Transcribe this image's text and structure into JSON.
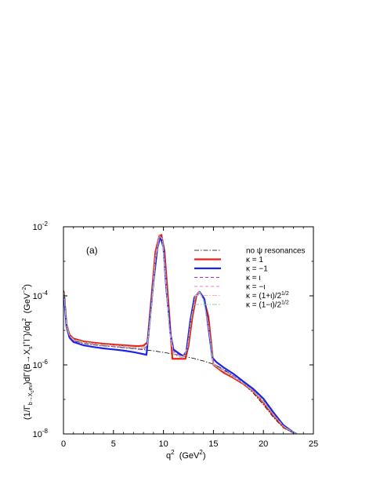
{
  "chart_data": {
    "type": "line",
    "panel_label": "(a)",
    "xlabel_parts": {
      "base": "q",
      "sup": "2",
      "unit_open": "  (GeV",
      "unit_sup": "2",
      "unit_close": ")"
    },
    "ylabel_parts": {
      "p1": "(1/Γ",
      "sub1": "b→X",
      "subsub1": "c",
      "sub1b": "eν",
      "p2": ")dΓ(B→X",
      "sub2": "s",
      "p3": "l",
      "sup3": "+",
      "p4": "l",
      "sup4": "−",
      "p5": ")/dq",
      "sup5": "2",
      "p6": "  (GeV",
      "sup6": "−2",
      "p7": ")"
    },
    "xlim": [
      0,
      25
    ],
    "ylim": [
      1e-08,
      0.01
    ],
    "yscale": "log",
    "x_ticks": [
      0,
      5,
      10,
      15,
      20,
      25
    ],
    "x_tick_labels": [
      "0",
      "5",
      "10",
      "15",
      "20",
      "25"
    ],
    "y_ticks": [
      1e-08,
      1e-06,
      0.0001,
      0.01
    ],
    "y_tick_labels": [
      {
        "base": "10",
        "exp": "-8"
      },
      {
        "base": "10",
        "exp": "-6"
      },
      {
        "base": "10",
        "exp": "-4"
      },
      {
        "base": "10",
        "exp": "-2"
      }
    ],
    "legend_position": "top-right",
    "series": [
      {
        "name": "no ψ resonances",
        "color": "#000000",
        "dash": "6,2,1.5,2",
        "width": 0.8,
        "x": [
          0.05,
          0.3,
          0.6,
          1,
          2,
          3,
          4,
          5,
          6,
          7,
          8,
          9,
          10,
          11,
          12,
          13,
          14,
          15,
          16,
          17,
          18,
          19,
          20,
          21,
          22,
          23,
          23.3
        ],
        "y": [
          0.00014,
          1.5e-05,
          6.5e-06,
          5e-06,
          4.2e-06,
          3.8e-06,
          3.55e-06,
          3.35e-06,
          3.15e-06,
          2.95e-06,
          2.75e-06,
          2.55e-06,
          2.3e-06,
          2.05e-06,
          1.8e-06,
          1.55e-06,
          1.3e-06,
          1.05e-06,
          7.5e-07,
          4.8e-07,
          2.8e-07,
          1.5e-07,
          7e-08,
          3e-08,
          1.5e-08,
          1.05e-08,
          1e-08
        ]
      },
      {
        "name": "κ = 1",
        "color": "#e8211b",
        "dash": "",
        "width": 2.2,
        "x": [
          0.05,
          0.3,
          0.6,
          1,
          2,
          3,
          4,
          5,
          6,
          7,
          7.5,
          8,
          8.4,
          8.8,
          9.2,
          9.6,
          9.8,
          10.1,
          10.5,
          10.9,
          11.2,
          12.2,
          12.5,
          12.9,
          13.3,
          13.6,
          14,
          14.5,
          15,
          16,
          17,
          18,
          19,
          20,
          21,
          22,
          23,
          23.3
        ],
        "y": [
          0.00013,
          1.5e-05,
          7.5e-06,
          5.8e-06,
          4.8e-06,
          4.4e-06,
          4.1e-06,
          3.9e-06,
          3.7e-06,
          3.55e-06,
          3.5e-06,
          3.6e-06,
          4.5e-06,
          9e-05,
          0.0019,
          0.0055,
          0.0058,
          0.002,
          6e-05,
          1.5e-06,
          1.5e-06,
          1.5e-06,
          3.5e-06,
          2.5e-05,
          0.0001,
          0.00013,
          9e-05,
          2.5e-05,
          1e-06,
          6e-07,
          4.2e-07,
          2.8e-07,
          1.7e-07,
          8e-08,
          3.4e-08,
          1.6e-08,
          1.1e-08,
          1e-08
        ]
      },
      {
        "name": "κ = −1",
        "color": "#1a24e6",
        "dash": "",
        "width": 2.2,
        "x": [
          0.05,
          0.3,
          0.6,
          1,
          2,
          3,
          4,
          5,
          6,
          7,
          8,
          8.3,
          8.6,
          9,
          9.4,
          9.7,
          10,
          10.3,
          10.7,
          11,
          11.5,
          12,
          12.3,
          12.7,
          13.1,
          13.6,
          14.1,
          14.5,
          14.9,
          15.3,
          16,
          17,
          18,
          19,
          20,
          21,
          22,
          23,
          23.3
        ],
        "y": [
          0.00011,
          1.3e-05,
          6.2e-06,
          4.6e-06,
          3.7e-06,
          3.3e-06,
          3e-06,
          2.8e-06,
          2.6e-06,
          2.35e-06,
          2.05e-06,
          1.95e-06,
          1.5e-05,
          0.00025,
          0.0025,
          0.0052,
          0.0025,
          0.00015,
          8e-06,
          2.8e-06,
          2.2e-06,
          1.8e-06,
          2.5e-06,
          2e-05,
          9e-05,
          0.00013,
          8e-05,
          1.2e-05,
          1.6e-06,
          1.2e-06,
          8.5e-07,
          5.5e-07,
          3.3e-07,
          2e-07,
          1.05e-07,
          4.2e-08,
          1.8e-08,
          1.1e-08,
          1e-08
        ]
      },
      {
        "name": "κ = ι",
        "color": "#a02ed6",
        "dash": "4,3",
        "width": 1,
        "x": [
          0.05,
          0.3,
          0.6,
          1,
          2,
          3,
          4,
          5,
          6,
          7,
          8,
          8.4,
          8.8,
          9.2,
          9.6,
          9.9,
          10.2,
          10.6,
          11,
          11.5,
          12,
          12.4,
          12.8,
          13.2,
          13.6,
          14,
          14.5,
          15,
          16,
          17,
          18,
          19,
          20,
          21,
          22,
          23,
          23.3
        ],
        "y": [
          0.00012,
          1.4e-05,
          6.8e-06,
          5.2e-06,
          4.3e-06,
          3.9e-06,
          3.6e-06,
          3.4e-06,
          3.2e-06,
          3e-06,
          2.8e-06,
          3.5e-06,
          4e-05,
          0.001,
          0.0052,
          0.0048,
          0.0006,
          1.5e-05,
          2.5e-06,
          2e-06,
          1.8e-06,
          2.8e-06,
          2.2e-05,
          9e-05,
          0.000125,
          8e-05,
          1.5e-05,
          1.1e-06,
          7e-07,
          4.8e-07,
          3e-07,
          1.8e-07,
          9e-08,
          3.8e-08,
          1.7e-08,
          1.1e-08,
          1e-08
        ]
      },
      {
        "name": "κ = −ι",
        "color": "#f07ac8",
        "dash": "4,3",
        "width": 1,
        "x": [
          0.05,
          0.3,
          0.6,
          1,
          2,
          3,
          4,
          5,
          6,
          7,
          8,
          8.4,
          8.8,
          9.2,
          9.6,
          9.9,
          10.2,
          10.6,
          11,
          11.5,
          12,
          12.4,
          12.8,
          13.2,
          13.6,
          14,
          14.5,
          15,
          16,
          17,
          18,
          19,
          20,
          21,
          22,
          23,
          23.3
        ],
        "y": [
          0.00012,
          1.4e-05,
          6.9e-06,
          5.3e-06,
          4.4e-06,
          4e-06,
          3.7e-06,
          3.5e-06,
          3.3e-06,
          3.1e-06,
          2.9e-06,
          3.7e-06,
          4.5e-05,
          0.0011,
          0.0053,
          0.0046,
          0.0005,
          1.2e-05,
          2.4e-06,
          1.9e-06,
          1.75e-06,
          3e-06,
          2.3e-05,
          9.5e-05,
          0.000128,
          7.5e-05,
          1.4e-05,
          1.05e-06,
          6.8e-07,
          4.6e-07,
          2.9e-07,
          1.75e-07,
          8.8e-08,
          3.7e-08,
          1.7e-08,
          1.1e-08,
          1e-08
        ]
      },
      {
        "name": "κ = (1+ι)/2",
        "name_sup": "1/2",
        "color": "#f4b2b2",
        "dash": "6,2,1.5,2",
        "width": 1,
        "x": [
          0.05,
          0.3,
          0.6,
          1,
          2,
          3,
          4,
          5,
          6,
          7,
          8,
          8.4,
          8.8,
          9.2,
          9.6,
          9.9,
          10.2,
          10.6,
          11,
          11.5,
          12,
          12.4,
          12.8,
          13.2,
          13.6,
          14,
          14.5,
          15,
          16,
          17,
          18,
          19,
          20,
          21,
          22,
          23,
          23.3
        ],
        "y": [
          0.000125,
          1.45e-05,
          7.1e-06,
          5.5e-06,
          4.6e-06,
          4.2e-06,
          3.9e-06,
          3.7e-06,
          3.5e-06,
          3.3e-06,
          3.15e-06,
          4e-06,
          5.5e-05,
          0.0014,
          0.0056,
          0.0042,
          0.00035,
          9e-06,
          2e-06,
          1.7e-06,
          1.6e-06,
          3.2e-06,
          2.4e-05,
          0.0001,
          0.00013,
          7.8e-05,
          1.3e-05,
          1e-06,
          6.5e-07,
          4.4e-07,
          2.9e-07,
          1.7e-07,
          8.5e-08,
          3.6e-08,
          1.65e-08,
          1.1e-08,
          1e-08
        ]
      },
      {
        "name": "κ = (1−ι)/2",
        "name_sup": "1/2",
        "color": "#8fd28f",
        "dash": "6,2,1.5,2",
        "width": 1,
        "x": [
          0.05,
          0.3,
          0.6,
          1,
          2,
          3,
          4,
          5,
          6,
          7,
          8,
          8.4,
          8.8,
          9.2,
          9.6,
          9.9,
          10.2,
          10.6,
          11,
          11.5,
          12,
          12.4,
          12.8,
          13.2,
          13.6,
          14,
          14.5,
          15,
          16,
          17,
          18,
          19,
          20,
          21,
          22,
          23,
          23.3
        ],
        "y": [
          0.000125,
          1.45e-05,
          7e-06,
          5.4e-06,
          4.5e-06,
          4.1e-06,
          3.8e-06,
          3.6e-06,
          3.4e-06,
          3.2e-06,
          3.05e-06,
          3.8e-06,
          5e-05,
          0.0013,
          0.0055,
          0.0043,
          0.0004,
          1e-05,
          2.1e-06,
          1.75e-06,
          1.65e-06,
          3.1e-06,
          2.35e-05,
          9.8e-05,
          0.00013,
          7.6e-05,
          1.35e-05,
          1e-06,
          6.6e-07,
          4.5e-07,
          2.9e-07,
          1.7e-07,
          8.6e-08,
          3.6e-08,
          1.65e-08,
          1.1e-08,
          1e-08
        ]
      }
    ]
  }
}
